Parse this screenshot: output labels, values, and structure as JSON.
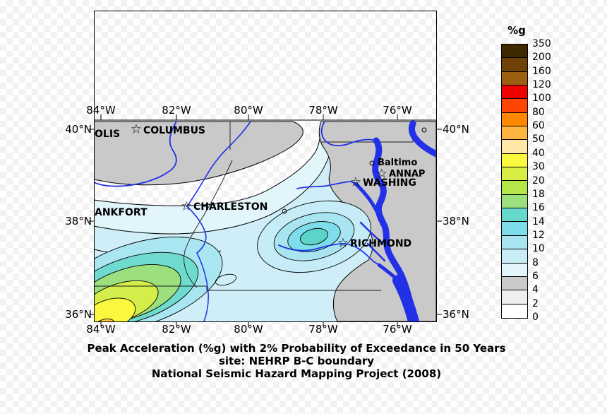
{
  "figure": {
    "caption": [
      "Peak Acceleration (%g) with 2% Probability of Exceedance in 50 Years",
      "site: NEHRP B-C boundary",
      "National Seismic Hazard Mapping Project (2008)"
    ]
  },
  "map": {
    "lon_labels": [
      "84°W",
      "82°W",
      "80°W",
      "78°W",
      "76°W"
    ],
    "lat_labels": [
      "40°N",
      "38°N",
      "36°N"
    ],
    "cities": [
      {
        "label": "OLIS",
        "marker": "none"
      },
      {
        "label": "COLUMBUS",
        "marker": "star"
      },
      {
        "label": "",
        "marker": "circle"
      },
      {
        "label": "Baltimo",
        "marker": "circle"
      },
      {
        "label": "ANNAP",
        "marker": "star"
      },
      {
        "label": "WASHING",
        "marker": "star"
      },
      {
        "label": "CHARLESTON",
        "marker": "star"
      },
      {
        "label": "",
        "marker": "circle"
      },
      {
        "label": "ANKFORT",
        "marker": "none"
      },
      {
        "label": "RICHMOND",
        "marker": "star"
      }
    ],
    "features": {
      "water_color": "#2231e8",
      "low_hazard_gray": "#c9c9c9"
    }
  },
  "colorbar": {
    "title": "%g",
    "tick_labels": [
      "350",
      "200",
      "160",
      "120",
      "100",
      "80",
      "60",
      "50",
      "40",
      "30",
      "20",
      "18",
      "16",
      "14",
      "12",
      "10",
      "8",
      "6",
      "4",
      "2",
      "0"
    ],
    "cell_colors_top_to_bottom": [
      "#3f2a00",
      "#6e4205",
      "#9d6010",
      "#f10000",
      "#ff4400",
      "#ff8800",
      "#ffb640",
      "#ffe8a6",
      "#fbf93f",
      "#d9ee44",
      "#b5e64a",
      "#9ce07e",
      "#66d8cc",
      "#7eddea",
      "#a8e5f1",
      "#c9edf7",
      "#e2f5fb",
      "#c9c9c9",
      "#efefef",
      "#ffffff"
    ]
  }
}
